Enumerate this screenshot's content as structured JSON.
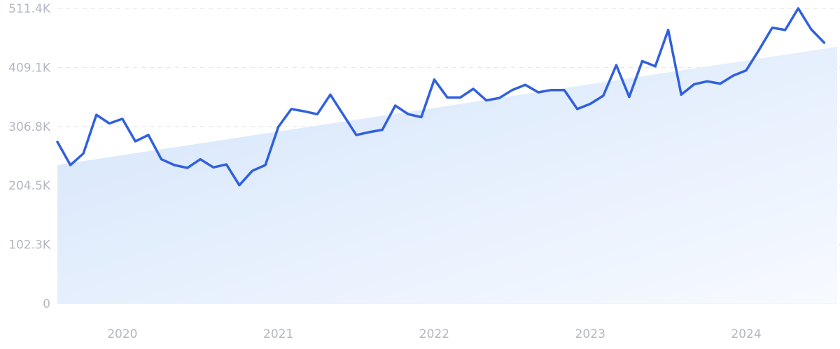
{
  "chart_data": {
    "type": "line",
    "title": "",
    "xlabel": "",
    "ylabel": "",
    "y_ticks": [
      "0",
      "102.3K",
      "204.5K",
      "306.8K",
      "409.1K",
      "511.4K"
    ],
    "y_tick_values": [
      0,
      102300,
      204500,
      306800,
      409100,
      511400
    ],
    "ylim": [
      0,
      511400
    ],
    "x_ticks": [
      "2020",
      "2021",
      "2022",
      "2023",
      "2024"
    ],
    "x_tick_values": [
      "2020-01",
      "2021-01",
      "2022-01",
      "2023-01",
      "2024-01"
    ],
    "xlim": [
      "2019-08",
      "2024-08"
    ],
    "grid": true,
    "series": [
      {
        "color": "#3060dd",
        "x": [
          "2019-08",
          "2019-09",
          "2019-10",
          "2019-11",
          "2019-12",
          "2020-01",
          "2020-02",
          "2020-03",
          "2020-04",
          "2020-05",
          "2020-06",
          "2020-07",
          "2020-08",
          "2020-09",
          "2020-10",
          "2020-11",
          "2020-12",
          "2021-01",
          "2021-02",
          "2021-03",
          "2021-04",
          "2021-05",
          "2021-06",
          "2021-07",
          "2021-08",
          "2021-09",
          "2021-10",
          "2021-11",
          "2021-12",
          "2022-01",
          "2022-02",
          "2022-03",
          "2022-04",
          "2022-05",
          "2022-06",
          "2022-07",
          "2022-08",
          "2022-09",
          "2022-10",
          "2022-11",
          "2022-12",
          "2023-01",
          "2023-02",
          "2023-03",
          "2023-04",
          "2023-05",
          "2023-06",
          "2023-07",
          "2023-08",
          "2023-09",
          "2023-10",
          "2023-11",
          "2023-12",
          "2024-01",
          "2024-02",
          "2024-03",
          "2024-04",
          "2024-05",
          "2024-06",
          "2024-07"
        ],
        "values": [
          280000,
          240000,
          260000,
          327000,
          312000,
          320000,
          281000,
          292000,
          250000,
          240000,
          235000,
          250000,
          236000,
          241000,
          205000,
          230000,
          240000,
          306000,
          337000,
          333000,
          328000,
          362000,
          327000,
          292000,
          297000,
          301000,
          343000,
          328000,
          323000,
          388000,
          357000,
          357000,
          372000,
          352000,
          356000,
          370000,
          379000,
          366000,
          370000,
          370000,
          337000,
          346000,
          360000,
          413000,
          358000,
          420000,
          411000,
          474000,
          362000,
          380000,
          385000,
          381000,
          395000,
          404000,
          440000,
          478000,
          474000,
          511400,
          475000,
          452000
        ]
      }
    ],
    "trend": {
      "start": 240000,
      "end": 445000
    }
  }
}
